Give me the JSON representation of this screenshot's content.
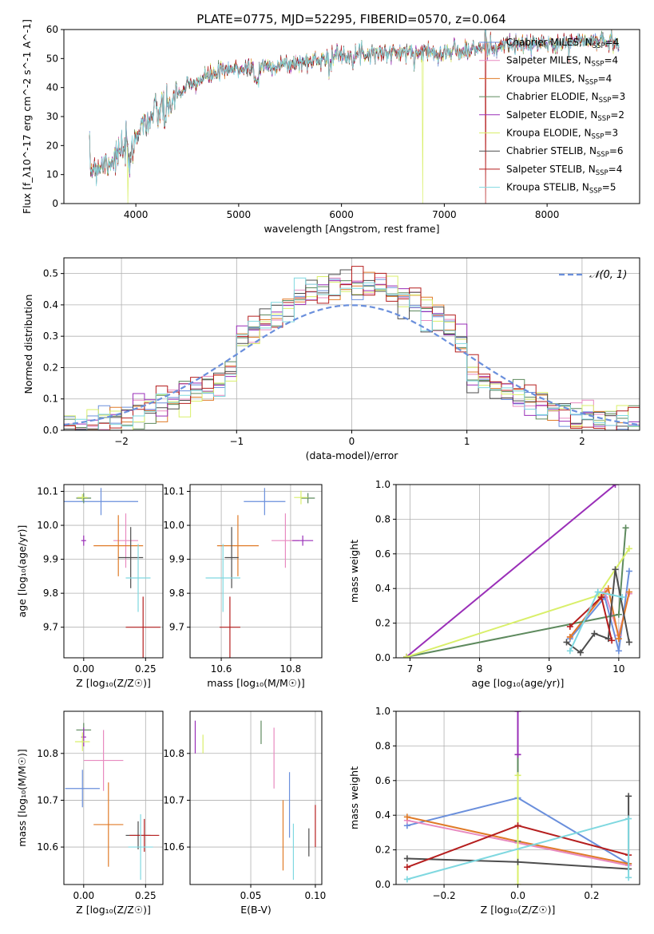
{
  "figure": {
    "title": "PLATE=0775, MJD=52295, FIBERID=0570, z=0.064"
  },
  "colors": {
    "Chabrier MILES": "#6a8fdc",
    "Salpeter MILES": "#e88ac0",
    "Kroupa MILES": "#e07b28",
    "Chabrier ELODIE": "#5e8a5e",
    "Salpeter ELODIE": "#9a2fb8",
    "Kroupa ELODIE": "#d9ef6a",
    "Chabrier STELIB": "#4d4d4d",
    "Salpeter STELIB": "#b51e1e",
    "Kroupa STELIB": "#7fd8e0",
    "normal_curve": "#6a8fdc"
  },
  "chart_data": [
    {
      "id": "spectrum",
      "type": "line",
      "xlabel": "wavelength [Angstrom, rest frame]",
      "ylabel": "Flux [f_λ10^-17 erg cm^-2 s^-1 A^-1]",
      "xlim": [
        3300,
        8900
      ],
      "ylim": [
        0,
        60
      ],
      "xticks": [
        "4000",
        "5000",
        "6000",
        "7000",
        "8000"
      ],
      "yticks": [
        "0",
        "10",
        "20",
        "30",
        "40",
        "50",
        "60"
      ],
      "grid": false,
      "legend_position": "top-right",
      "legend": [
        {
          "model": "Chabrier MILES",
          "label": "Chabrier MILES, N",
          "n": "=4"
        },
        {
          "model": "Salpeter MILES",
          "label": "Salpeter MILES, N",
          "n": "=4"
        },
        {
          "model": "Kroupa MILES",
          "label": "Kroupa MILES, N",
          "n": "=4"
        },
        {
          "model": "Chabrier ELODIE",
          "label": "Chabrier ELODIE, N",
          "n": "=3"
        },
        {
          "model": "Salpeter ELODIE",
          "label": "Salpeter ELODIE, N",
          "n": "=2"
        },
        {
          "model": "Kroupa ELODIE",
          "label": "Kroupa ELODIE, N",
          "n": "=3"
        },
        {
          "model": "Chabrier STELIB",
          "label": "Chabrier STELIB, N",
          "n": "=6"
        },
        {
          "model": "Salpeter STELIB",
          "label": "Salpeter STELIB, N",
          "n": "=4"
        },
        {
          "model": "Kroupa STELIB",
          "label": "Kroupa STELIB, N",
          "n": "=5"
        }
      ],
      "legend_subscript": "SSP",
      "continuum": [
        [
          3550,
          12
        ],
        [
          3700,
          14
        ],
        [
          3850,
          17
        ],
        [
          3950,
          22
        ],
        [
          4050,
          27
        ],
        [
          4200,
          31
        ],
        [
          4350,
          36
        ],
        [
          4500,
          40
        ],
        [
          4700,
          44
        ],
        [
          4900,
          46
        ],
        [
          5100,
          47
        ],
        [
          5300,
          47.5
        ],
        [
          5500,
          48
        ],
        [
          5700,
          49
        ],
        [
          5900,
          51
        ],
        [
          6100,
          51.5
        ],
        [
          6300,
          52
        ],
        [
          6500,
          52
        ],
        [
          6700,
          52
        ],
        [
          6900,
          52.5
        ],
        [
          7100,
          52
        ],
        [
          7300,
          53
        ],
        [
          7500,
          54
        ],
        [
          7700,
          54.5
        ],
        [
          7900,
          55
        ],
        [
          8100,
          55
        ],
        [
          8300,
          56
        ],
        [
          8500,
          56
        ],
        [
          8700,
          56
        ]
      ],
      "emission_spikes": [
        [
          7100,
          58
        ],
        [
          7400,
          62
        ],
        [
          7600,
          58
        ]
      ],
      "masked_drops": [
        {
          "model": "Kroupa ELODIE",
          "x": 3920
        },
        {
          "model": "Kroupa ELODIE",
          "x": 6790
        },
        {
          "model": "Salpeter STELIB",
          "x": 7400
        }
      ]
    },
    {
      "id": "residuals",
      "type": "area",
      "xlabel": "(data-model)/error",
      "ylabel": "Normed distribution",
      "xlim": [
        -2.5,
        2.5
      ],
      "ylim": [
        0,
        0.55
      ],
      "xticks": [
        "−2",
        "−1",
        "0",
        "1",
        "2"
      ],
      "yticks": [
        "0.0",
        "0.1",
        "0.2",
        "0.3",
        "0.4",
        "0.5"
      ],
      "grid": true,
      "bin_width": 0.1,
      "legend_label": "𝒩(0, 1)",
      "legend_position": "top-right"
    },
    {
      "id": "age_vs_Z",
      "type": "scatter",
      "xlabel": "Z [log₁₀(Z/Z☉)]",
      "ylabel": "age  [log₁₀(age/yr)]",
      "xlim": [
        -0.08,
        0.32
      ],
      "ylim": [
        9.61,
        10.12
      ],
      "xticks": [
        "0.00",
        "0.25"
      ],
      "yticks": [
        "9.7",
        "9.8",
        "9.9",
        "10.0",
        "10.1"
      ],
      "grid": true,
      "points": [
        {
          "model": "Chabrier MILES",
          "x": 0.07,
          "y": 10.07,
          "xerr": 0.15,
          "yerr": 0.04
        },
        {
          "model": "Salpeter MILES",
          "x": 0.17,
          "y": 9.955,
          "xerr": 0.05,
          "yerr": 0.08
        },
        {
          "model": "Kroupa MILES",
          "x": 0.14,
          "y": 9.94,
          "xerr": 0.1,
          "yerr": 0.09
        },
        {
          "model": "Chabrier ELODIE",
          "x": 0.0,
          "y": 10.08,
          "xerr": 0.03,
          "yerr": 0.015
        },
        {
          "model": "Salpeter ELODIE",
          "x": 0.0,
          "y": 9.955,
          "xerr": 0.01,
          "yerr": 0.015
        },
        {
          "model": "Kroupa ELODIE",
          "x": -0.005,
          "y": 10.082,
          "xerr": 0.02,
          "yerr": 0.01
        },
        {
          "model": "Chabrier STELIB",
          "x": 0.19,
          "y": 9.905,
          "xerr": 0.05,
          "yerr": 0.09
        },
        {
          "model": "Salpeter STELIB",
          "x": 0.24,
          "y": 9.7,
          "xerr": 0.07,
          "yerr": 0.09
        },
        {
          "model": "Kroupa STELIB",
          "x": 0.22,
          "y": 9.845,
          "xerr": 0.05,
          "yerr": 0.1
        }
      ]
    },
    {
      "id": "age_vs_mass",
      "type": "scatter",
      "xlabel": "mass [log₁₀(M/M☉)]",
      "ylabel": "",
      "xlim": [
        10.51,
        10.89
      ],
      "ylim": [
        9.61,
        10.12
      ],
      "xticks": [
        "10.6",
        "10.8"
      ],
      "yticks": [
        "9.7",
        "9.8",
        "9.9",
        "10.0",
        "10.1"
      ],
      "grid": true,
      "points": [
        {
          "model": "Chabrier MILES",
          "x": 10.725,
          "y": 10.07,
          "xerr": 0.06,
          "yerr": 0.04
        },
        {
          "model": "Salpeter MILES",
          "x": 10.785,
          "y": 9.955,
          "xerr": 0.04,
          "yerr": 0.08
        },
        {
          "model": "Kroupa MILES",
          "x": 10.648,
          "y": 9.94,
          "xerr": 0.06,
          "yerr": 0.09
        },
        {
          "model": "Chabrier ELODIE",
          "x": 10.85,
          "y": 10.08,
          "xerr": 0.02,
          "yerr": 0.015
        },
        {
          "model": "Salpeter ELODIE",
          "x": 10.835,
          "y": 9.955,
          "xerr": 0.03,
          "yerr": 0.015
        },
        {
          "model": "Kroupa ELODIE",
          "x": 10.83,
          "y": 10.082,
          "xerr": 0.02,
          "yerr": 0.02
        },
        {
          "model": "Chabrier STELIB",
          "x": 10.63,
          "y": 9.905,
          "xerr": 0.02,
          "yerr": 0.09
        },
        {
          "model": "Salpeter STELIB",
          "x": 10.625,
          "y": 9.7,
          "xerr": 0.03,
          "yerr": 0.09
        },
        {
          "model": "Kroupa STELIB",
          "x": 10.605,
          "y": 9.845,
          "xerr": 0.05,
          "yerr": 0.1
        }
      ]
    },
    {
      "id": "weight_vs_age",
      "type": "line",
      "xlabel": "age  [log₁₀(age/yr)]",
      "ylabel": "mass weight",
      "xlim": [
        6.8,
        10.3
      ],
      "ylim": [
        0,
        1.0
      ],
      "xticks": [
        "7",
        "8",
        "9",
        "10"
      ],
      "yticks": [
        "0.0",
        "0.2",
        "0.4",
        "0.6",
        "0.8",
        "1.0"
      ],
      "grid": true,
      "series": [
        {
          "model": "Chabrier MILES",
          "x": [
            9.3,
            9.8,
            10.0,
            10.15
          ],
          "y": [
            0.11,
            0.35,
            0.04,
            0.5
          ]
        },
        {
          "model": "Salpeter MILES",
          "x": [
            9.3,
            9.8,
            10.0,
            10.15
          ],
          "y": [
            0.12,
            0.38,
            0.13,
            0.37
          ]
        },
        {
          "model": "Kroupa MILES",
          "x": [
            9.3,
            9.85,
            10.0,
            10.15
          ],
          "y": [
            0.12,
            0.4,
            0.11,
            0.38
          ]
        },
        {
          "model": "Chabrier ELODIE",
          "x": [
            6.95,
            10.0,
            10.1
          ],
          "y": [
            0.005,
            0.25,
            0.75
          ]
        },
        {
          "model": "Salpeter ELODIE",
          "x": [
            6.95,
            9.95
          ],
          "y": [
            0.005,
            1.0
          ]
        },
        {
          "model": "Kroupa ELODIE",
          "x": [
            6.95,
            9.7,
            10.15
          ],
          "y": [
            0.005,
            0.36,
            0.63
          ]
        },
        {
          "model": "Chabrier STELIB",
          "x": [
            9.25,
            9.45,
            9.65,
            9.85,
            9.95,
            10.15
          ],
          "y": [
            0.09,
            0.03,
            0.14,
            0.11,
            0.51,
            0.09
          ]
        },
        {
          "model": "Salpeter STELIB",
          "x": [
            9.3,
            9.75,
            9.9
          ],
          "y": [
            0.18,
            0.35,
            0.1
          ]
        },
        {
          "model": "Kroupa STELIB",
          "x": [
            9.3,
            9.7,
            10.05
          ],
          "y": [
            0.04,
            0.38,
            0.35
          ]
        }
      ]
    },
    {
      "id": "mass_vs_Z",
      "type": "scatter",
      "xlabel": "Z [log₁₀(Z/Z☉)]",
      "ylabel": "mass [log₁₀(M/M☉)]",
      "xlim": [
        -0.08,
        0.32
      ],
      "ylim": [
        10.52,
        10.89
      ],
      "xticks": [
        "0.00",
        "0.25"
      ],
      "yticks": [
        "10.6",
        "10.7",
        "10.8"
      ],
      "grid": true,
      "points": [
        {
          "model": "Chabrier MILES",
          "x": -0.005,
          "y": 10.725,
          "xerr": 0.07,
          "yerr": 0.04
        },
        {
          "model": "Salpeter MILES",
          "x": 0.08,
          "y": 10.785,
          "xerr": 0.08,
          "yerr": 0.065
        },
        {
          "model": "Kroupa MILES",
          "x": 0.1,
          "y": 10.648,
          "xerr": 0.06,
          "yerr": 0.09
        },
        {
          "model": "Chabrier ELODIE",
          "x": 0.0,
          "y": 10.85,
          "xerr": 0.03,
          "yerr": 0.015
        },
        {
          "model": "Salpeter ELODIE",
          "x": 0.0,
          "y": 10.835,
          "xerr": 0.01,
          "yerr": 0.02
        },
        {
          "model": "Kroupa ELODIE",
          "x": -0.005,
          "y": 10.825,
          "xerr": 0.03,
          "yerr": 0.02
        },
        {
          "model": "Chabrier STELIB",
          "x": 0.22,
          "y": 10.625,
          "xerr": 0.05,
          "yerr": 0.03
        },
        {
          "model": "Salpeter STELIB",
          "x": 0.245,
          "y": 10.625,
          "xerr": 0.06,
          "yerr": 0.035
        },
        {
          "model": "Kroupa STELIB",
          "x": 0.23,
          "y": 10.6,
          "xerr": 0.05,
          "yerr": 0.07
        }
      ]
    },
    {
      "id": "mass_vs_ebv",
      "type": "scatter",
      "xlabel": "E(B-V)",
      "ylabel": "",
      "xlim": [
        0.003,
        0.105
      ],
      "ylim": [
        10.52,
        10.89
      ],
      "xticks": [
        "0.05",
        "0.10"
      ],
      "yticks": [
        "10.6",
        "10.7",
        "10.8"
      ],
      "grid": true,
      "points": [
        {
          "model": "Chabrier MILES",
          "x": 0.08,
          "y": 10.69,
          "xerr": 0,
          "yerr": 0.07
        },
        {
          "model": "Salpeter MILES",
          "x": 0.068,
          "y": 10.79,
          "xerr": 0,
          "yerr": 0.065
        },
        {
          "model": "Kroupa MILES",
          "x": 0.075,
          "y": 10.625,
          "xerr": 0,
          "yerr": 0.075
        },
        {
          "model": "Chabrier ELODIE",
          "x": 0.058,
          "y": 10.845,
          "xerr": 0,
          "yerr": 0.025
        },
        {
          "model": "Salpeter ELODIE",
          "x": 0.007,
          "y": 10.835,
          "xerr": 0,
          "yerr": 0.035
        },
        {
          "model": "Kroupa ELODIE",
          "x": 0.013,
          "y": 10.82,
          "xerr": 0,
          "yerr": 0.02
        },
        {
          "model": "Chabrier STELIB",
          "x": 0.095,
          "y": 10.61,
          "xerr": 0,
          "yerr": 0.03
        },
        {
          "model": "Salpeter STELIB",
          "x": 0.1,
          "y": 10.645,
          "xerr": 0,
          "yerr": 0.045
        },
        {
          "model": "Kroupa STELIB",
          "x": 0.083,
          "y": 10.59,
          "xerr": 0,
          "yerr": 0.06
        }
      ]
    },
    {
      "id": "weight_vs_Z",
      "type": "line",
      "xlabel": "Z [log₁₀(Z/Z☉)]",
      "ylabel": "mass weight",
      "xlim": [
        -0.33,
        0.33
      ],
      "ylim": [
        0,
        1.0
      ],
      "xticks": [
        "−0.2",
        "0.0",
        "0.2"
      ],
      "yticks": [
        "0.0",
        "0.2",
        "0.4",
        "0.6",
        "0.8",
        "1.0"
      ],
      "grid": true,
      "series": [
        {
          "model": "Chabrier MILES",
          "x": [
            -0.3,
            0.0,
            0.3
          ],
          "y": [
            0.34,
            0.5,
            0.12
          ]
        },
        {
          "model": "Salpeter MILES",
          "x": [
            -0.3,
            0.0,
            0.3
          ],
          "y": [
            0.37,
            0.24,
            0.11
          ]
        },
        {
          "model": "Kroupa MILES",
          "x": [
            -0.3,
            0.0,
            0.3
          ],
          "y": [
            0.39,
            0.25,
            0.12
          ]
        },
        {
          "model": "Chabrier ELODIE",
          "x": [
            0.0,
            0.0
          ],
          "y": [
            0.25,
            0.75
          ]
        },
        {
          "model": "Salpeter ELODIE",
          "x": [
            0.0,
            0.0
          ],
          "y": [
            0.75,
            1.0
          ]
        },
        {
          "model": "Kroupa ELODIE",
          "x": [
            0.0,
            0.0
          ],
          "y": [
            0.0,
            0.63
          ]
        },
        {
          "model": "Chabrier STELIB",
          "x": [
            -0.3,
            0.0,
            0.3,
            0.3
          ],
          "y": [
            0.15,
            0.13,
            0.09,
            0.51
          ]
        },
        {
          "model": "Salpeter STELIB",
          "x": [
            -0.3,
            0.0,
            0.3
          ],
          "y": [
            0.1,
            0.34,
            0.17
          ]
        },
        {
          "model": "Kroupa STELIB",
          "x": [
            -0.3,
            0.3,
            0.3
          ],
          "y": [
            0.03,
            0.38,
            0.04
          ]
        }
      ],
      "vertical_ticks_at": [
        -0.3,
        0.0,
        0.3
      ]
    }
  ]
}
